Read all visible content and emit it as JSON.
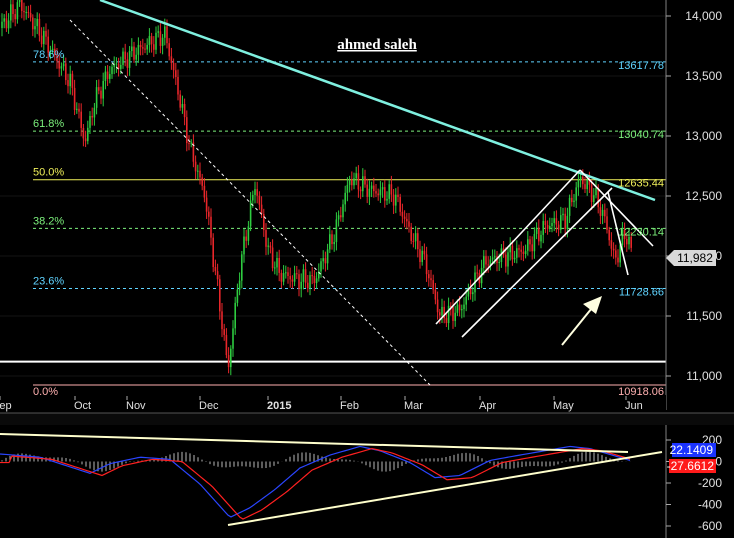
{
  "chart_data": [
    {
      "type": "candlestick",
      "watermark": "ahmed saleh",
      "last_price": "11,982",
      "x_ticks": [
        "Sep",
        "Oct",
        "Nov",
        "Dec",
        "2015",
        "Feb",
        "Mar",
        "Apr",
        "May",
        "Jun"
      ],
      "y_ticks": [
        "14,000",
        "13,500",
        "13,000",
        "12,500",
        "12,000",
        "11,500",
        "11,000"
      ],
      "ylim": [
        10880,
        14120
      ],
      "fib_levels": [
        {
          "pct": "78.6%",
          "price": "13617.78",
          "value": 13617.78,
          "color": "#5fd3ff",
          "dashed": true
        },
        {
          "pct": "61.8%",
          "price": "13040.74",
          "value": 13040.74,
          "color": "#7cf07c",
          "dashed": true
        },
        {
          "pct": "50.0%",
          "price": "12635.44",
          "value": 12635.44,
          "color": "#f0f05a",
          "dashed": false
        },
        {
          "pct": "38.2%",
          "price": "12230.14",
          "value": 12230.14,
          "color": "#7cf07c",
          "dashed": true
        },
        {
          "pct": "23.6%",
          "price": "11728.66",
          "value": 11728.66,
          "color": "#5fd3ff",
          "dashed": true
        },
        {
          "pct": "0.0%",
          "price": "10918.06",
          "value": 10918.06,
          "color": "#ffb0b0",
          "dashed": false
        }
      ],
      "support_level": 11120,
      "colors": {
        "up": "#2ecc40",
        "down": "#e8262a",
        "trendline": "#7ff0e0",
        "channel": "#ffffff",
        "arrow": "#ffffe0"
      }
    },
    {
      "type": "macd",
      "y_ticks": [
        "200",
        "0",
        "-200",
        "-400",
        "-600"
      ],
      "ylim": [
        -660,
        250
      ],
      "macd_label": "22.1409",
      "signal_label": "-27.6612",
      "colors": {
        "macd": "#2a45ff",
        "signal": "#ff2020",
        "histogram": "#b8b8b8",
        "trendline": "#ffffcc"
      }
    }
  ]
}
